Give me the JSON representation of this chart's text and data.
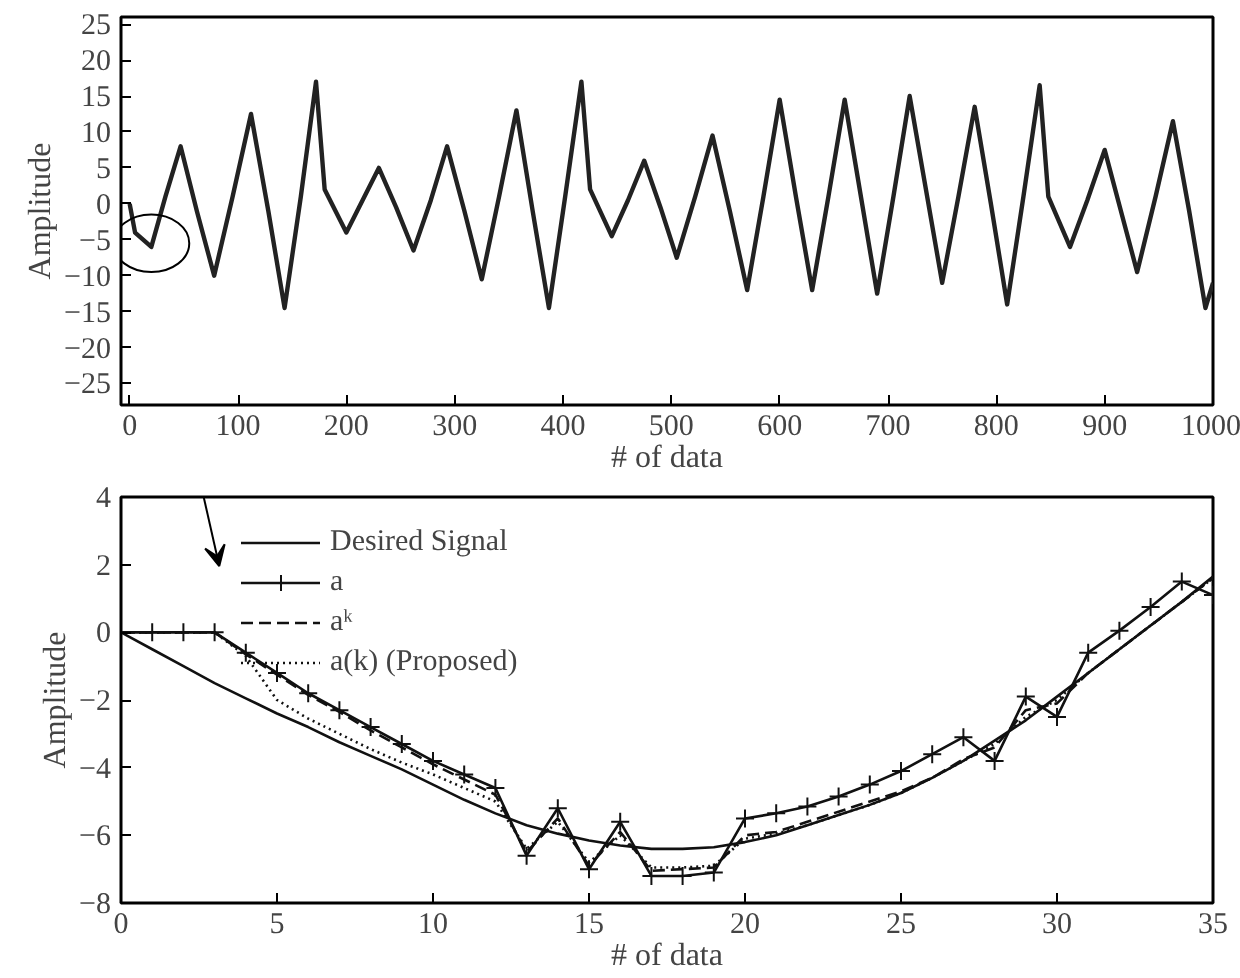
{
  "chart_data": [
    {
      "type": "line",
      "xlabel": "# of data",
      "ylabel": "Amplitude",
      "xlim": [
        -8,
        1000
      ],
      "ylim": [
        -28,
        26
      ],
      "xticks": [
        0,
        100,
        200,
        300,
        400,
        500,
        600,
        700,
        800,
        900,
        1000
      ],
      "yticks": [
        -25,
        -20,
        -15,
        -10,
        -5,
        0,
        5,
        10,
        15,
        20,
        25
      ],
      "grid": false,
      "legend": false,
      "series": [
        {
          "color": "#222222",
          "line_style": "solid",
          "marker": "none",
          "x": [
            0,
            5,
            20,
            33,
            47,
            62,
            78,
            95,
            112,
            128,
            143,
            158,
            172,
            180,
            200,
            215,
            230,
            246,
            262,
            278,
            293,
            309,
            325,
            341,
            357,
            372,
            387,
            402,
            417,
            425,
            445,
            460,
            475,
            490,
            505,
            522,
            538,
            554,
            570,
            585,
            600,
            615,
            630,
            645,
            660,
            675,
            690,
            705,
            720,
            735,
            750,
            765,
            780,
            795,
            810,
            825,
            840,
            848,
            868,
            884,
            900,
            915,
            930,
            947,
            963,
            978,
            993,
            1000
          ],
          "values": [
            0,
            -4,
            -6,
            1,
            8,
            -1,
            -10,
            1,
            12.5,
            -1,
            -14.5,
            1,
            17,
            2,
            -4,
            0.5,
            5,
            -0.5,
            -6.5,
            0.5,
            8,
            -1,
            -10.5,
            1,
            13,
            -1,
            -14.5,
            1,
            17,
            2,
            -4.5,
            0.5,
            6,
            -0.5,
            -7.5,
            1,
            9.5,
            -1,
            -12,
            1,
            14.5,
            1,
            -12,
            1,
            14.5,
            1,
            -12.5,
            1,
            15,
            2,
            -11,
            1,
            13.5,
            0,
            -14,
            1,
            16.5,
            1,
            -6,
            0.5,
            7.5,
            -1,
            -9.5,
            1,
            11.5,
            -1,
            -14.5,
            -11
          ]
        }
      ]
    },
    {
      "type": "line",
      "xlabel": "# of data",
      "ylabel": "Amplitude",
      "xlim": [
        0,
        35
      ],
      "ylim": [
        -8,
        4
      ],
      "xticks": [
        0,
        5,
        10,
        15,
        20,
        25,
        30,
        35
      ],
      "yticks": [
        -8,
        -6,
        -4,
        -2,
        0,
        2,
        4
      ],
      "grid": false,
      "legend": "top left",
      "x": [
        0,
        1,
        2,
        3,
        4,
        5,
        6,
        7,
        8,
        9,
        10,
        11,
        12,
        13,
        14,
        15,
        16,
        17,
        18,
        19,
        20,
        21,
        22,
        23,
        24,
        25,
        26,
        27,
        28,
        29,
        30,
        31,
        32,
        33,
        34,
        35
      ],
      "series": [
        {
          "name": "Desired Signal",
          "color": "#111111",
          "line_style": "solid",
          "marker": "none",
          "values": [
            0,
            -0.5,
            -1.0,
            -1.5,
            -1.95,
            -2.4,
            -2.8,
            -3.25,
            -3.65,
            -4.05,
            -4.5,
            -4.95,
            -5.35,
            -5.7,
            -5.95,
            -6.15,
            -6.3,
            -6.4,
            -6.4,
            -6.35,
            -6.2,
            -6.0,
            -5.7,
            -5.4,
            -5.1,
            -4.75,
            -4.3,
            -3.8,
            -3.2,
            -2.6,
            -1.9,
            -1.2,
            -0.5,
            0.2,
            0.9,
            1.65
          ]
        },
        {
          "name": "a",
          "color": "#111111",
          "line_style": "solid",
          "marker": "cross",
          "values": [
            0,
            0,
            0,
            0,
            -0.6,
            -1.2,
            -1.8,
            -2.3,
            -2.8,
            -3.3,
            -3.8,
            -4.2,
            -4.6,
            -6.6,
            -5.2,
            -7.0,
            -5.6,
            -7.2,
            -7.2,
            -7.1,
            -5.5,
            -5.35,
            -5.15,
            -4.85,
            -4.5,
            -4.1,
            -3.6,
            -3.1,
            -3.8,
            -1.9,
            -2.5,
            -0.6,
            0.05,
            0.75,
            1.5,
            1.1
          ]
        },
        {
          "name": "aᵏ",
          "color": "#111111",
          "line_style": "dashed",
          "marker": "none",
          "values": [
            0,
            0,
            0,
            0,
            -0.65,
            -1.25,
            -1.85,
            -2.35,
            -2.9,
            -3.4,
            -3.9,
            -4.35,
            -4.8,
            -6.5,
            -5.5,
            -6.9,
            -5.9,
            -7.05,
            -7.0,
            -6.95,
            -6.0,
            -5.9,
            -5.6,
            -5.3,
            -5.0,
            -4.7,
            -4.3,
            -3.75,
            -3.4,
            -2.3,
            -2.1,
            -1.2,
            -0.5,
            0.2,
            0.9,
            1.6
          ]
        },
        {
          "name": "a(k) (Proposed)",
          "color": "#111111",
          "line_style": "dotted",
          "marker": "none",
          "values": [
            0,
            0,
            0,
            0,
            -0.7,
            -2.0,
            -2.55,
            -3.0,
            -3.45,
            -3.85,
            -4.2,
            -4.6,
            -5.0,
            -6.4,
            -5.6,
            -6.8,
            -6.0,
            -6.95,
            -6.95,
            -6.9,
            -6.1,
            -5.95,
            -5.7,
            -5.4,
            -5.1,
            -4.75,
            -4.3,
            -3.8,
            -3.3,
            -2.5,
            -2.0,
            -1.2,
            -0.5,
            0.2,
            0.9,
            1.6
          ]
        }
      ]
    }
  ]
}
